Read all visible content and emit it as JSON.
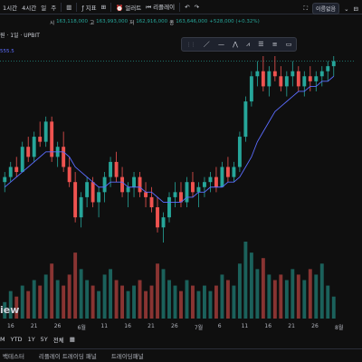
{
  "toolbar": {
    "intervals": [
      "1시간",
      "4시간",
      "일",
      "주"
    ],
    "chart_type": "chart-type-icon",
    "indicators_label": "지표",
    "alerts_label": "얼러트",
    "replay_label": "리플레이",
    "layout_name": "이름없음"
  },
  "ohlc": {
    "o_label": "시",
    "o_val": "163,118,000",
    "h_label": "고",
    "h_val": "163,993,000",
    "l_label": "저",
    "l_val": "162,916,000",
    "c_label": "종",
    "c_val": "163,646,000",
    "chg": "+528,000 (+0.32%)"
  },
  "legend": {
    "title": "원 · 1일 · UPBIT",
    "ma": "555.5"
  },
  "watermark": "iew",
  "x_labels": [
    "16",
    "21",
    "26",
    "6월",
    "11",
    "16",
    "21",
    "26",
    "7월",
    "6",
    "11",
    "16",
    "21",
    "26",
    "8월"
  ],
  "footer": {
    "timeframes": [
      "M",
      "YTD",
      "1Y",
      "5Y",
      "전체"
    ],
    "panels": [
      "백테스터",
      "리플레이 트레이딩 패널",
      "트레이딩패널"
    ]
  },
  "colors": {
    "up": "#26a69a",
    "down": "#ef5350",
    "ma": "#5b6cff",
    "bg": "#0f0f0f"
  },
  "chart_data": {
    "type": "candlestick",
    "candles": [
      [
        148,
        150,
        146,
        149
      ],
      [
        149,
        152,
        148,
        151
      ],
      [
        151,
        153,
        149,
        150
      ],
      [
        150,
        156,
        150,
        155
      ],
      [
        155,
        157,
        152,
        153
      ],
      [
        153,
        158,
        152,
        157
      ],
      [
        157,
        160,
        155,
        156
      ],
      [
        156,
        161,
        155,
        160
      ],
      [
        160,
        161,
        152,
        153
      ],
      [
        153,
        156,
        151,
        155
      ],
      [
        155,
        158,
        150,
        151
      ],
      [
        151,
        153,
        147,
        148
      ],
      [
        148,
        150,
        140,
        141
      ],
      [
        141,
        146,
        139,
        145
      ],
      [
        145,
        149,
        143,
        148
      ],
      [
        148,
        149,
        143,
        144
      ],
      [
        144,
        147,
        141,
        146
      ],
      [
        146,
        150,
        144,
        149
      ],
      [
        149,
        153,
        147,
        152
      ],
      [
        152,
        154,
        148,
        149
      ],
      [
        149,
        151,
        145,
        146
      ],
      [
        146,
        148,
        143,
        147
      ],
      [
        147,
        150,
        145,
        149
      ],
      [
        149,
        150,
        145,
        146
      ],
      [
        146,
        148,
        143,
        145
      ],
      [
        145,
        147,
        142,
        143
      ],
      [
        143,
        145,
        138,
        139
      ],
      [
        139,
        142,
        136,
        141
      ],
      [
        141,
        146,
        140,
        145
      ],
      [
        145,
        148,
        143,
        146
      ],
      [
        146,
        148,
        143,
        144
      ],
      [
        144,
        149,
        143,
        148
      ],
      [
        148,
        150,
        145,
        146
      ],
      [
        146,
        148,
        143,
        147
      ],
      [
        147,
        149,
        145,
        148
      ],
      [
        148,
        150,
        146,
        149
      ],
      [
        149,
        151,
        146,
        147
      ],
      [
        147,
        152,
        147,
        151
      ],
      [
        151,
        153,
        148,
        149
      ],
      [
        149,
        152,
        148,
        151
      ],
      [
        151,
        158,
        150,
        157
      ],
      [
        157,
        165,
        156,
        164
      ],
      [
        164,
        170,
        163,
        169
      ],
      [
        169,
        172,
        167,
        170
      ],
      [
        170,
        173,
        166,
        167
      ],
      [
        167,
        171,
        165,
        170
      ],
      [
        170,
        173,
        168,
        169
      ],
      [
        169,
        171,
        166,
        167
      ],
      [
        167,
        170,
        165,
        169
      ],
      [
        169,
        172,
        167,
        170
      ],
      [
        170,
        171,
        166,
        167
      ],
      [
        167,
        170,
        165,
        169
      ],
      [
        169,
        171,
        166,
        168
      ],
      [
        168,
        170,
        166,
        169
      ],
      [
        169,
        171,
        167,
        170
      ],
      [
        170,
        172,
        168,
        171
      ],
      [
        171,
        173,
        169,
        172
      ]
    ],
    "volumes": [
      3,
      5,
      4,
      6,
      5,
      7,
      6,
      8,
      10,
      7,
      6,
      8,
      12,
      9,
      7,
      6,
      5,
      8,
      9,
      7,
      6,
      5,
      6,
      7,
      5,
      6,
      10,
      9,
      7,
      6,
      5,
      7,
      6,
      5,
      6,
      5,
      6,
      8,
      7,
      6,
      10,
      14,
      12,
      9,
      11,
      8,
      7,
      8,
      7,
      9,
      8,
      7,
      9,
      8,
      10,
      6,
      4
    ],
    "ma_values": [
      147,
      148,
      149,
      150,
      151,
      152,
      153,
      154,
      154,
      154,
      154,
      153,
      151,
      150,
      149,
      148,
      147,
      147,
      148,
      148,
      148,
      147,
      147,
      147,
      146,
      146,
      145,
      144,
      144,
      144,
      144,
      145,
      145,
      146,
      146,
      147,
      147,
      147,
      148,
      148,
      149,
      151,
      153,
      156,
      158,
      160,
      162,
      163,
      164,
      165,
      166,
      166,
      167,
      167,
      168,
      168,
      169
    ]
  }
}
